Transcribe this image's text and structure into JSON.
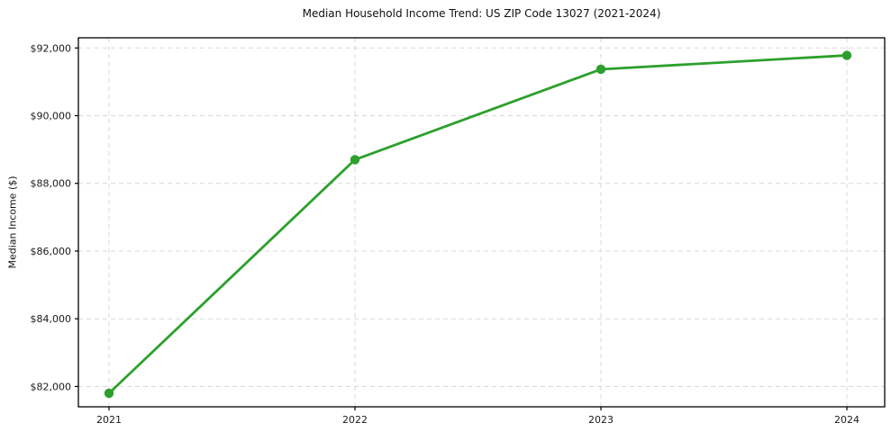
{
  "chart_data": {
    "type": "line",
    "title": "Median Household Income Trend: US ZIP Code 13027 (2021-2024)",
    "xlabel": "",
    "ylabel": "Median Income ($)",
    "categories": [
      "2021",
      "2022",
      "2023",
      "2024"
    ],
    "series": [
      {
        "name": "Median Household Income",
        "values": [
          81800,
          88700,
          91370,
          91780
        ]
      }
    ],
    "yticks": [
      82000,
      84000,
      86000,
      88000,
      90000,
      92000
    ],
    "ytick_labels": [
      "$82,000",
      "$84,000",
      "$86,000",
      "$88,000",
      "$90,000",
      "$92,000"
    ],
    "ylim": [
      81400,
      92300
    ],
    "grid": true,
    "legend_position": "none",
    "line_color": "#2ca02c",
    "marker": "circle",
    "grid_color": "#d8d8d8",
    "spine_color": "#000000",
    "background_color": "#ffffff"
  }
}
